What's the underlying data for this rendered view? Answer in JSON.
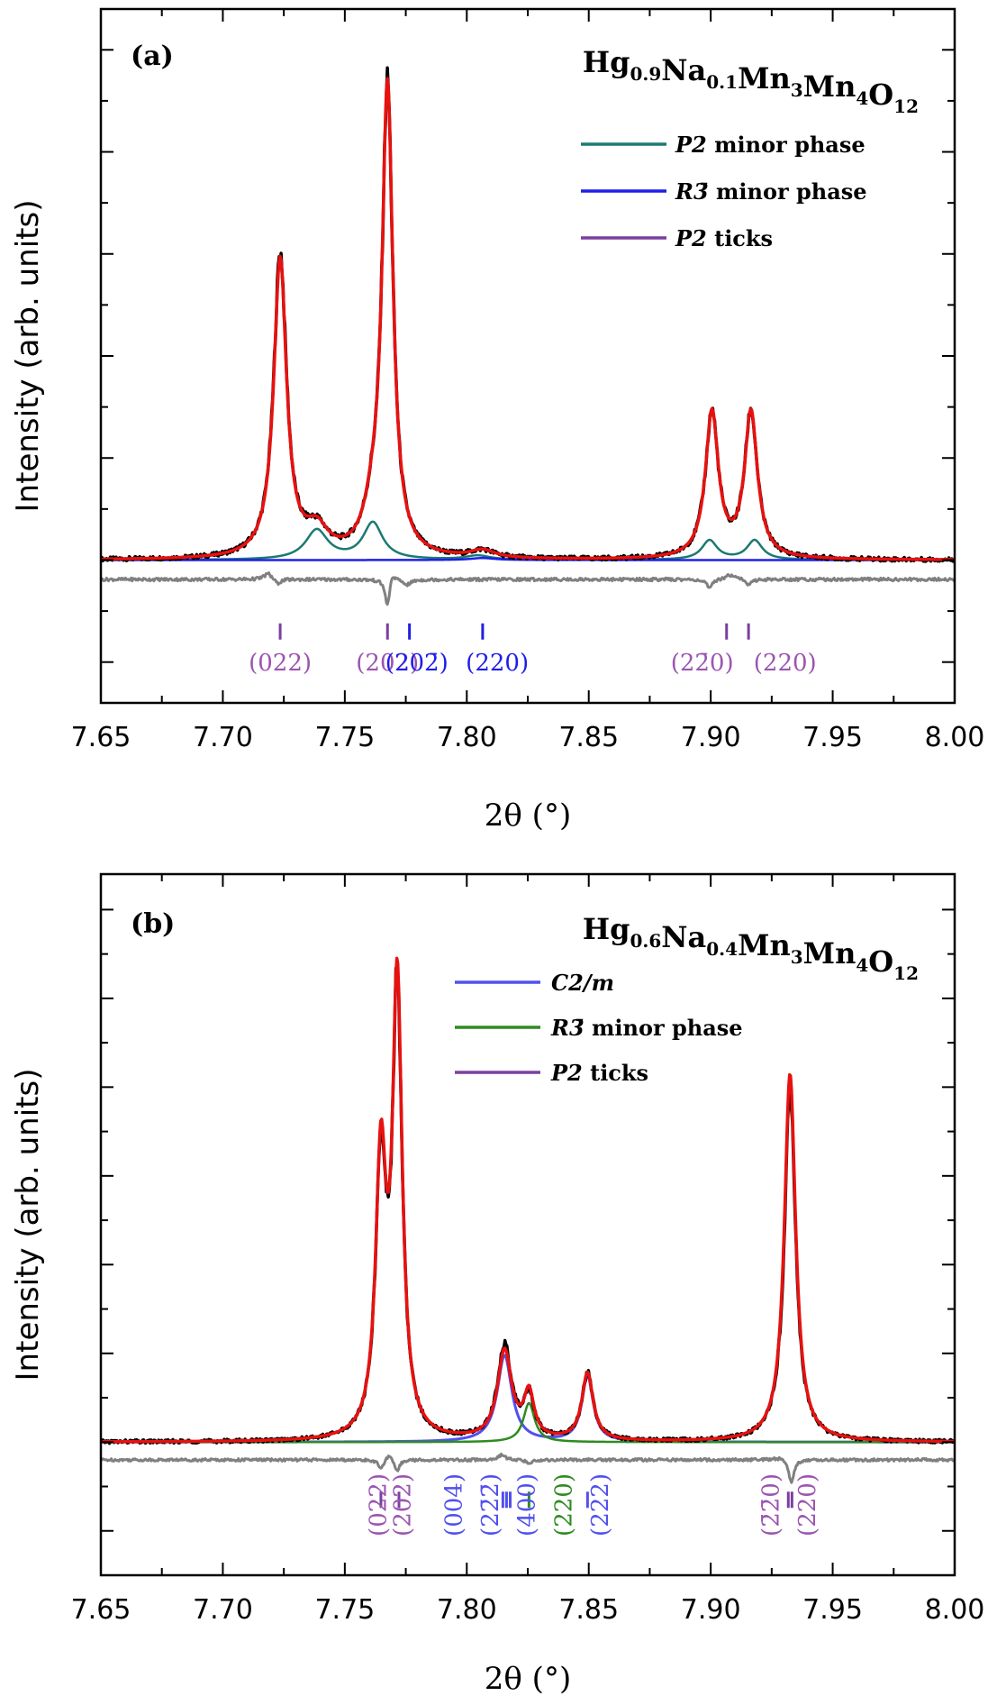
{
  "chart_data": [
    {
      "type": "line",
      "panel_label": "(a)",
      "title": {
        "base": "Hg",
        "parts": [
          {
            "t": "Hg",
            "sub": "0.9"
          },
          {
            "t": "Na",
            "sub": "0.1"
          },
          {
            "t": "Mn",
            "sub": "3"
          },
          {
            "t": "Mn",
            "sub": "4"
          },
          {
            "t": "O",
            "sub": "12"
          }
        ]
      },
      "title_text": "Hg0.9Na0.1Mn3Mn4O12",
      "xlabel": "2θ (°)",
      "ylabel": "Intensity (arb. units)",
      "xlim": [
        7.65,
        8.0
      ],
      "ylim": [
        -0.28,
        1.08
      ],
      "xticks": [
        "7.65",
        "7.70",
        "7.75",
        "7.80",
        "7.85",
        "7.90",
        "7.95",
        "8.00"
      ],
      "legend": [
        {
          "label": "P2 minor phase",
          "italic": "P2",
          "rest": " minor phase",
          "color": "#1b7a72"
        },
        {
          "label": "R3̄ minor phase",
          "italic": "R3̄",
          "rest": " minor phase",
          "color": "#1e1ee8"
        },
        {
          "label": "P2 ticks",
          "italic": "P2",
          "rest": " ticks",
          "color": "#7b3fa0"
        }
      ],
      "series": [
        {
          "name": "observed",
          "color": "#000000",
          "width": 3.5,
          "baseline": 0.0,
          "noise": 0.004,
          "peaks": [
            {
              "c": 7.7235,
              "h": 0.595,
              "w": 0.0032
            },
            {
              "c": 7.7675,
              "h": 0.915,
              "w": 0.0027
            },
            {
              "c": 7.7385,
              "h": 0.05,
              "w": 0.0055
            },
            {
              "c": 7.7615,
              "h": 0.065,
              "w": 0.0045
            },
            {
              "c": 7.8065,
              "h": 0.015,
              "w": 0.006
            },
            {
              "c": 7.9005,
              "h": 0.285,
              "w": 0.0032
            },
            {
              "c": 7.9165,
              "h": 0.285,
              "w": 0.0032
            }
          ]
        },
        {
          "name": "calculated",
          "color": "#e8110f",
          "width": 3.5,
          "baseline": 0.0,
          "noise": 0,
          "peaks": [
            {
              "c": 7.7235,
              "h": 0.585,
              "w": 0.0032
            },
            {
              "c": 7.7675,
              "h": 0.915,
              "w": 0.0027
            },
            {
              "c": 7.7385,
              "h": 0.05,
              "w": 0.0055
            },
            {
              "c": 7.7615,
              "h": 0.065,
              "w": 0.0045
            },
            {
              "c": 7.8065,
              "h": 0.015,
              "w": 0.006
            },
            {
              "c": 7.9005,
              "h": 0.285,
              "w": 0.0032
            },
            {
              "c": 7.9165,
              "h": 0.285,
              "w": 0.0032
            }
          ]
        },
        {
          "name": "P2 minor phase",
          "color": "#1b7a72",
          "width": 2.5,
          "baseline": 0.0,
          "noise": 0,
          "peaks": [
            {
              "c": 7.7385,
              "h": 0.058,
              "w": 0.0055
            },
            {
              "c": 7.7615,
              "h": 0.072,
              "w": 0.0048
            },
            {
              "c": 7.8045,
              "h": 0.008,
              "w": 0.006
            },
            {
              "c": 7.8995,
              "h": 0.038,
              "w": 0.0038
            },
            {
              "c": 7.918,
              "h": 0.038,
              "w": 0.0038
            }
          ]
        },
        {
          "name": "R3̄ minor phase",
          "color": "#1e1ee8",
          "width": 2.5,
          "baseline": 0.0,
          "noise": 0,
          "peaks": [
            {
              "c": 7.8065,
              "h": 0.004,
              "w": 0.006
            }
          ]
        },
        {
          "name": "difference",
          "color": "#808080",
          "width": 3,
          "baseline": -0.038,
          "noise": 0.003,
          "peaks": [
            {
              "c": 7.7185,
              "h": 0.012,
              "w": 0.002
            },
            {
              "c": 7.7225,
              "h": -0.01,
              "w": 0.0015
            },
            {
              "c": 7.7675,
              "h": -0.055,
              "w": 0.0012
            },
            {
              "c": 7.7695,
              "h": 0.018,
              "w": 0.0015
            },
            {
              "c": 7.7755,
              "h": -0.01,
              "w": 0.002
            },
            {
              "c": 7.8995,
              "h": -0.018,
              "w": 0.0015
            },
            {
              "c": 7.9085,
              "h": 0.01,
              "w": 0.003
            },
            {
              "c": 7.9155,
              "h": -0.012,
              "w": 0.0015
            }
          ]
        }
      ],
      "ticks": [
        {
          "x": 7.7235,
          "color": "#7b3fa0"
        },
        {
          "x": 7.7675,
          "color": "#7b3fa0"
        },
        {
          "x": 7.7765,
          "color": "#1e1ee8"
        },
        {
          "x": 7.8065,
          "color": "#1e1ee8"
        },
        {
          "x": 7.9065,
          "color": "#7b3fa0"
        },
        {
          "x": 7.9155,
          "color": "#7b3fa0"
        }
      ],
      "tick_y": -0.14,
      "reflections": [
        {
          "x": 7.7235,
          "text": "(022)",
          "color": "#9b55b0"
        },
        {
          "x": 7.7675,
          "text": "(202)",
          "color": "#9b55b0"
        },
        {
          "x": 7.7795,
          "text": "(202̄)",
          "color": "#1e1ee8"
        },
        {
          "x": 7.8125,
          "text": "(220)",
          "color": "#1e1ee8"
        },
        {
          "x": 7.8965,
          "text": "(22̄0)",
          "color": "#9b55b0"
        },
        {
          "x": 7.9305,
          "text": "(220)",
          "color": "#9b55b0"
        }
      ],
      "reflection_orientation": "horizontal"
    },
    {
      "type": "line",
      "panel_label": "(b)",
      "title_text": "Hg0.6Na0.4Mn3Mn4O12",
      "title": {
        "parts": [
          {
            "t": "Hg",
            "sub": "0.6"
          },
          {
            "t": "Na",
            "sub": "0.4"
          },
          {
            "t": "Mn",
            "sub": "3"
          },
          {
            "t": "Mn",
            "sub": "4"
          },
          {
            "t": "O",
            "sub": "12"
          }
        ]
      },
      "xlabel": "2θ (°)",
      "ylabel": "Intensity (arb. units)",
      "xlim": [
        7.65,
        8.0
      ],
      "ylim": [
        -0.3,
        1.28
      ],
      "xticks": [
        "7.65",
        "7.70",
        "7.75",
        "7.80",
        "7.85",
        "7.90",
        "7.95",
        "8.00"
      ],
      "legend": [
        {
          "label": "C2/m",
          "italic": "C2/m",
          "rest": "",
          "color": "#5050f0"
        },
        {
          "label": "R3̄ minor phase",
          "italic": "R3̄",
          "rest": " minor phase",
          "color": "#2e8b20"
        },
        {
          "label": "P2 ticks",
          "italic": "P2",
          "rest": " ticks",
          "color": "#7b3fa0"
        }
      ],
      "series": [
        {
          "name": "observed",
          "color": "#000000",
          "width": 3.5,
          "baseline": 0.0,
          "noise": 0.004,
          "peaks": [
            {
              "c": 7.7648,
              "h": 0.6,
              "w": 0.0026
            },
            {
              "c": 7.7715,
              "h": 1.0,
              "w": 0.0024
            },
            {
              "c": 7.8155,
              "h": 0.212,
              "w": 0.0035
            },
            {
              "c": 7.8255,
              "h": 0.095,
              "w": 0.0025
            },
            {
              "c": 7.8495,
              "h": 0.152,
              "w": 0.0028
            },
            {
              "c": 7.9325,
              "h": 0.79,
              "w": 0.0028
            }
          ]
        },
        {
          "name": "calculated",
          "color": "#e8110f",
          "width": 3.5,
          "baseline": 0.0,
          "noise": 0,
          "peaks": [
            {
              "c": 7.7648,
              "h": 0.61,
              "w": 0.0026
            },
            {
              "c": 7.7715,
              "h": 1.01,
              "w": 0.0024
            },
            {
              "c": 7.8155,
              "h": 0.2,
              "w": 0.0035
            },
            {
              "c": 7.8255,
              "h": 0.1,
              "w": 0.0025
            },
            {
              "c": 7.8495,
              "h": 0.152,
              "w": 0.0028
            },
            {
              "c": 7.9325,
              "h": 0.83,
              "w": 0.0028
            }
          ]
        },
        {
          "name": "C2/m",
          "color": "#5050f0",
          "width": 3,
          "baseline": 0.0,
          "noise": 0,
          "peaks": [
            {
              "c": 7.8155,
              "h": 0.195,
              "w": 0.0036
            },
            {
              "c": 7.8495,
              "h": 0.148,
              "w": 0.0028
            }
          ]
        },
        {
          "name": "R3̄ minor phase",
          "color": "#2e8b20",
          "width": 2.5,
          "baseline": 0.0,
          "noise": 0,
          "peaks": [
            {
              "c": 7.8255,
              "h": 0.088,
              "w": 0.0028
            }
          ]
        },
        {
          "name": "difference",
          "color": "#808080",
          "width": 3,
          "baseline": -0.04,
          "noise": 0.003,
          "peaks": [
            {
              "c": 7.7648,
              "h": -0.022,
              "w": 0.0012
            },
            {
              "c": 7.768,
              "h": 0.014,
              "w": 0.0012
            },
            {
              "c": 7.7715,
              "h": -0.024,
              "w": 0.0012
            },
            {
              "c": 7.8145,
              "h": 0.012,
              "w": 0.0015
            },
            {
              "c": 7.8255,
              "h": -0.008,
              "w": 0.0015
            },
            {
              "c": 7.93,
              "h": 0.008,
              "w": 0.004
            },
            {
              "c": 7.933,
              "h": -0.055,
              "w": 0.0014
            }
          ]
        }
      ],
      "ticks": [
        {
          "x": 7.7648,
          "color": "#7b3fa0"
        },
        {
          "x": 7.7722,
          "color": "#7b3fa0"
        },
        {
          "x": 7.8148,
          "color": "#5050f0"
        },
        {
          "x": 7.8163,
          "color": "#5050f0"
        },
        {
          "x": 7.8178,
          "color": "#5050f0"
        },
        {
          "x": 7.8255,
          "color": "#2e8b20"
        },
        {
          "x": 7.8495,
          "color": "#5050f0"
        },
        {
          "x": 7.9318,
          "color": "#7b3fa0"
        },
        {
          "x": 7.9333,
          "color": "#7b3fa0"
        }
      ],
      "tick_y": -0.13,
      "reflections": [
        {
          "x": 7.7635,
          "text": "(022)",
          "color": "#9b55b0"
        },
        {
          "x": 7.7735,
          "text": "(202)",
          "color": "#9b55b0"
        },
        {
          "x": 7.7945,
          "text": "(004)",
          "color": "#5050f0"
        },
        {
          "x": 7.8095,
          "text": "(22̄2̄)",
          "color": "#5050f0"
        },
        {
          "x": 7.8245,
          "text": "(400)",
          "color": "#5050f0"
        },
        {
          "x": 7.8395,
          "text": "(220)",
          "color": "#2e8b20"
        },
        {
          "x": 7.8545,
          "text": "(222)",
          "color": "#5050f0"
        },
        {
          "x": 7.9245,
          "text": "(2̄2̄0)",
          "color": "#9b55b0"
        },
        {
          "x": 7.9395,
          "text": "(220)",
          "color": "#9b55b0"
        }
      ],
      "reflection_orientation": "vertical"
    }
  ]
}
